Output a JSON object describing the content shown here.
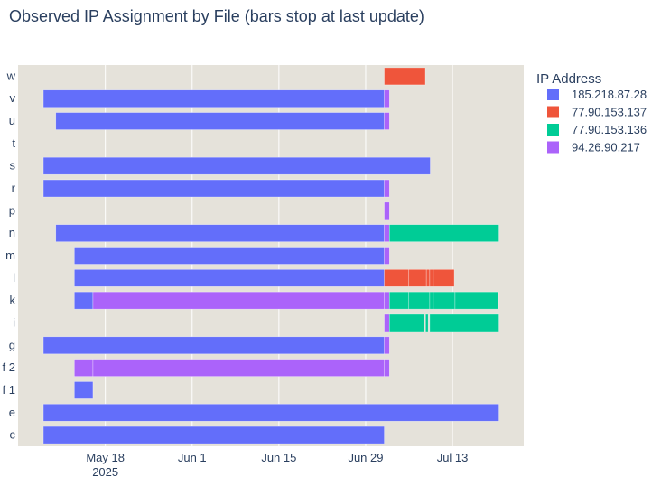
{
  "chart_data": {
    "type": "timeline",
    "title": "Observed IP Assignment by File (bars stop at last update)",
    "xlim": [
      "2025-05-03T22:00",
      "2025-07-24T12:00"
    ],
    "x_ticks": [
      {
        "date": "2025-05-18",
        "label": "May 18",
        "sublabel": "2025"
      },
      {
        "date": "2025-06-01",
        "label": "Jun 1"
      },
      {
        "date": "2025-06-15",
        "label": "Jun 15"
      },
      {
        "date": "2025-06-29",
        "label": "Jun 29"
      },
      {
        "date": "2025-07-13",
        "label": "Jul 13"
      }
    ],
    "categories": [
      "w",
      "v",
      "u",
      "t",
      "s",
      "r",
      "p",
      "n",
      "m",
      "l",
      "k",
      "i",
      "g",
      "f 2",
      "f 1",
      "e",
      "c"
    ],
    "legend": {
      "title": "IP Address",
      "position": "top-right",
      "entries": [
        {
          "name": "185.218.87.28",
          "color": "#636efa"
        },
        {
          "name": "77.90.153.137",
          "color": "#ef553b"
        },
        {
          "name": "77.90.153.136",
          "color": "#00cc96"
        },
        {
          "name": "94.26.90.217",
          "color": "#ab63fa"
        }
      ]
    },
    "segments": [
      {
        "file": "w",
        "ip": "77.90.153.137",
        "start": "2025-07-02T00:00",
        "end": "2025-07-08T15:00"
      },
      {
        "file": "v",
        "ip": "185.218.87.28",
        "start": "2025-05-08T00:00",
        "end": "2025-07-02T00:00"
      },
      {
        "file": "v",
        "ip": "94.26.90.217",
        "start": "2025-07-02T00:00",
        "end": "2025-07-02T20:00"
      },
      {
        "file": "u",
        "ip": "185.218.87.28",
        "start": "2025-05-10T00:00",
        "end": "2025-07-02T00:00"
      },
      {
        "file": "u",
        "ip": "94.26.90.217",
        "start": "2025-07-02T00:00",
        "end": "2025-07-02T20:00"
      },
      {
        "file": "s",
        "ip": "185.218.87.28",
        "start": "2025-05-08T00:00",
        "end": "2025-07-09T10:00"
      },
      {
        "file": "r",
        "ip": "185.218.87.28",
        "start": "2025-05-08T00:00",
        "end": "2025-07-02T00:00"
      },
      {
        "file": "r",
        "ip": "94.26.90.217",
        "start": "2025-07-02T00:00",
        "end": "2025-07-02T20:00"
      },
      {
        "file": "p",
        "ip": "94.26.90.217",
        "start": "2025-07-02T00:00",
        "end": "2025-07-02T20:00"
      },
      {
        "file": "n",
        "ip": "185.218.87.28",
        "start": "2025-05-10T00:00",
        "end": "2025-07-02T00:00"
      },
      {
        "file": "n",
        "ip": "94.26.90.217",
        "start": "2025-07-02T00:00",
        "end": "2025-07-02T20:00"
      },
      {
        "file": "n",
        "ip": "77.90.153.136",
        "start": "2025-07-02T20:00",
        "end": "2025-07-20T12:00"
      },
      {
        "file": "m",
        "ip": "185.218.87.28",
        "start": "2025-05-13T00:00",
        "end": "2025-07-02T00:00"
      },
      {
        "file": "m",
        "ip": "94.26.90.217",
        "start": "2025-07-02T00:00",
        "end": "2025-07-02T20:00"
      },
      {
        "file": "l",
        "ip": "185.218.87.28",
        "start": "2025-05-13T00:00",
        "end": "2025-07-02T00:00"
      },
      {
        "file": "l",
        "ip": "77.90.153.137",
        "start": "2025-07-02T00:00",
        "end": "2025-07-05T23:00"
      },
      {
        "file": "l",
        "ip": "77.90.153.137",
        "start": "2025-07-05T23:00",
        "end": "2025-07-08T19:00"
      },
      {
        "file": "l",
        "ip": "77.90.153.137",
        "start": "2025-07-08T19:00",
        "end": "2025-07-09T08:00"
      },
      {
        "file": "l",
        "ip": "77.90.153.137",
        "start": "2025-07-09T08:00",
        "end": "2025-07-09T22:00"
      },
      {
        "file": "l",
        "ip": "77.90.153.137",
        "start": "2025-07-09T22:00",
        "end": "2025-07-13T07:00"
      },
      {
        "file": "k",
        "ip": "185.218.87.28",
        "start": "2025-05-13T00:00",
        "end": "2025-05-16T00:00"
      },
      {
        "file": "k",
        "ip": "94.26.90.217",
        "start": "2025-05-16T00:00",
        "end": "2025-07-02T00:00"
      },
      {
        "file": "k",
        "ip": "94.26.90.217",
        "start": "2025-07-02T00:00",
        "end": "2025-07-02T20:00"
      },
      {
        "file": "k",
        "ip": "77.90.153.136",
        "start": "2025-07-02T20:00",
        "end": "2025-07-05T23:00"
      },
      {
        "file": "k",
        "ip": "77.90.153.136",
        "start": "2025-07-05T23:00",
        "end": "2025-07-08T10:00"
      },
      {
        "file": "k",
        "ip": "77.90.153.136",
        "start": "2025-07-08T10:00",
        "end": "2025-07-09T08:00"
      },
      {
        "file": "k",
        "ip": "77.90.153.136",
        "start": "2025-07-09T08:00",
        "end": "2025-07-09T22:00"
      },
      {
        "file": "k",
        "ip": "77.90.153.136",
        "start": "2025-07-09T22:00",
        "end": "2025-07-13T10:00"
      },
      {
        "file": "k",
        "ip": "77.90.153.136",
        "start": "2025-07-13T10:00",
        "end": "2025-07-20T10:00"
      },
      {
        "file": "i",
        "ip": "94.26.90.217",
        "start": "2025-07-02T00:00",
        "end": "2025-07-02T20:00"
      },
      {
        "file": "i",
        "ip": "77.90.153.136",
        "start": "2025-07-02T20:00",
        "end": "2025-07-08T10:00"
      },
      {
        "file": "i",
        "ip": "77.90.153.136",
        "start": "2025-07-08T16:00",
        "end": "2025-07-09T02:00"
      },
      {
        "file": "i",
        "ip": "77.90.153.136",
        "start": "2025-07-09T08:00",
        "end": "2025-07-20T12:00"
      },
      {
        "file": "g",
        "ip": "185.218.87.28",
        "start": "2025-05-08T00:00",
        "end": "2025-07-02T00:00"
      },
      {
        "file": "g",
        "ip": "94.26.90.217",
        "start": "2025-07-02T00:00",
        "end": "2025-07-02T20:00"
      },
      {
        "file": "f 2",
        "ip": "94.26.90.217",
        "start": "2025-05-13T00:00",
        "end": "2025-05-16T00:00"
      },
      {
        "file": "f 2",
        "ip": "94.26.90.217",
        "start": "2025-05-16T00:00",
        "end": "2025-07-02T00:00"
      },
      {
        "file": "f 2",
        "ip": "94.26.90.217",
        "start": "2025-07-02T00:00",
        "end": "2025-07-02T20:00"
      },
      {
        "file": "f 1",
        "ip": "185.218.87.28",
        "start": "2025-05-13T00:00",
        "end": "2025-05-16T00:00"
      },
      {
        "file": "e",
        "ip": "185.218.87.28",
        "start": "2025-05-08T00:00",
        "end": "2025-07-20T12:00"
      },
      {
        "file": "c",
        "ip": "185.218.87.28",
        "start": "2025-05-08T00:00",
        "end": "2025-07-02T00:00"
      }
    ]
  }
}
